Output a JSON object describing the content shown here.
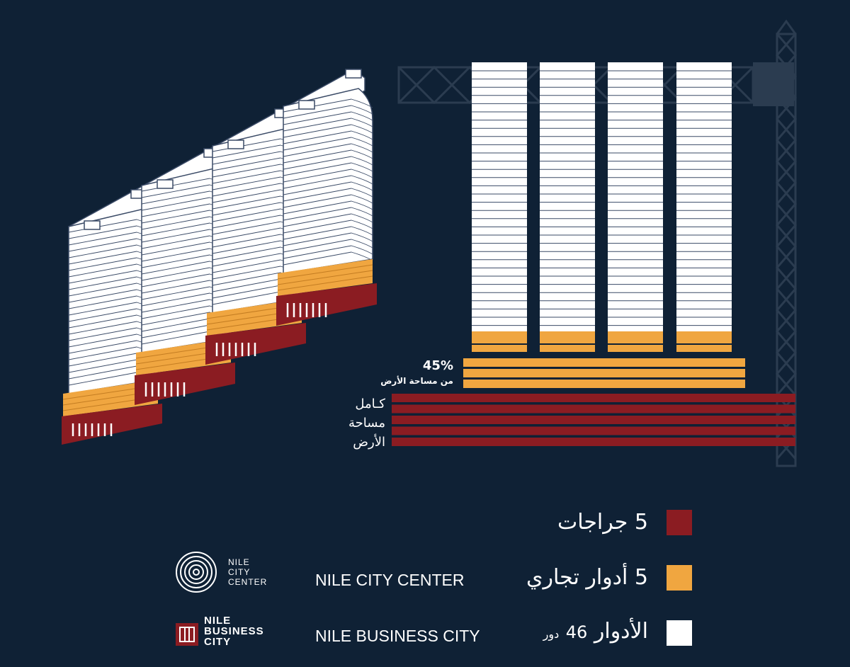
{
  "colors": {
    "background": "#0f2135",
    "garage": "#8b1c22",
    "commercial": "#f0a640",
    "office": "#ffffff",
    "crane": "#2b3c50",
    "building_outline": "#3a4a66"
  },
  "diagram": {
    "percent_value": "45%",
    "percent_caption": "من مساحة الأرض",
    "full_area_lines": [
      "كـامل",
      "مساحة",
      "الأرض"
    ]
  },
  "legend": [
    {
      "id": "garages",
      "number": "5",
      "label": "جراجات",
      "color_key": "garage"
    },
    {
      "id": "commercial",
      "number": "5",
      "label": "أدوار تجاري",
      "color_key": "commercial"
    },
    {
      "id": "floors",
      "label": "الأدوار",
      "number": "46",
      "unit": "دور",
      "color_key": "office"
    }
  ],
  "brands": {
    "center": {
      "logo_lines": [
        "NILE",
        "CITY",
        "CENTER"
      ],
      "name": "NILE CITY CENTER",
      "logo_icon": "concentric-circles-icon"
    },
    "business": {
      "logo_lines": [
        "NILE",
        "BUSINESS",
        "CITY"
      ],
      "name": "NILE BUSINESS CITY",
      "logo_icon": "square-grid-icon"
    }
  }
}
